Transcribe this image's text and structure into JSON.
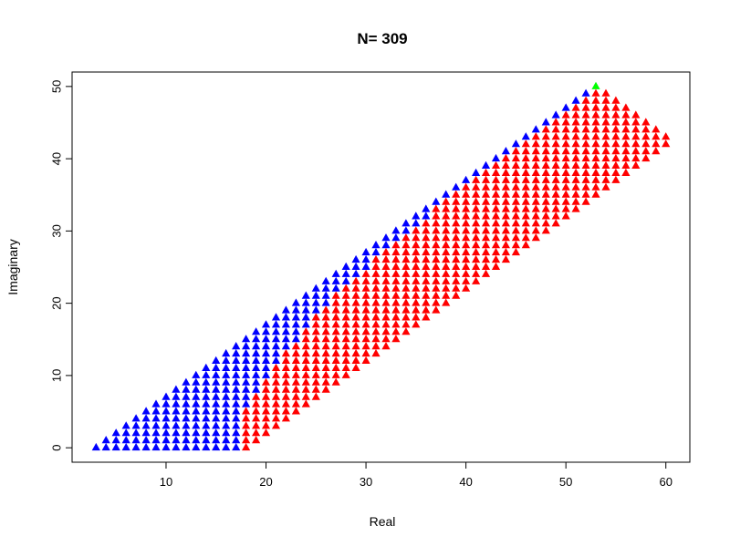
{
  "chart_data": {
    "type": "scatter",
    "title": "N= 309",
    "xlabel": "Real",
    "ylabel": "Imaginary",
    "xlim": [
      0.6,
      62.4
    ],
    "ylim": [
      -2,
      52
    ],
    "xticks": [
      10,
      20,
      30,
      40,
      50,
      60
    ],
    "yticks": [
      0,
      10,
      20,
      30,
      40,
      50
    ],
    "marker": "filled-triangle",
    "grid": false,
    "legend": "none",
    "colors": {
      "blue": "#0000ff",
      "red": "#ff0000",
      "green": "#00ff00"
    },
    "columns": [
      {
        "x": 3,
        "blue": [
          0,
          0
        ],
        "red": null
      },
      {
        "x": 4,
        "blue": [
          0,
          1
        ],
        "red": null
      },
      {
        "x": 5,
        "blue": [
          0,
          2
        ],
        "red": null
      },
      {
        "x": 6,
        "blue": [
          0,
          3
        ],
        "red": null
      },
      {
        "x": 7,
        "blue": [
          0,
          4
        ],
        "red": null
      },
      {
        "x": 8,
        "blue": [
          0,
          5
        ],
        "red": null
      },
      {
        "x": 9,
        "blue": [
          0,
          6
        ],
        "red": null
      },
      {
        "x": 10,
        "blue": [
          0,
          7
        ],
        "red": null
      },
      {
        "x": 11,
        "blue": [
          0,
          8
        ],
        "red": null
      },
      {
        "x": 12,
        "blue": [
          0,
          9
        ],
        "red": null
      },
      {
        "x": 13,
        "blue": [
          0,
          10
        ],
        "red": null
      },
      {
        "x": 14,
        "blue": [
          0,
          11
        ],
        "red": null
      },
      {
        "x": 15,
        "blue": [
          0,
          12
        ],
        "red": null
      },
      {
        "x": 16,
        "blue": [
          0,
          13
        ],
        "red": null
      },
      {
        "x": 17,
        "blue": [
          0,
          14
        ],
        "red": null
      },
      {
        "x": 18,
        "blue": [
          6,
          15
        ],
        "red": [
          0,
          5
        ]
      },
      {
        "x": 19,
        "blue": [
          8,
          16
        ],
        "red": [
          1,
          7
        ]
      },
      {
        "x": 20,
        "blue": [
          10,
          17
        ],
        "red": [
          2,
          9
        ]
      },
      {
        "x": 21,
        "blue": [
          12,
          18
        ],
        "red": [
          3,
          11
        ]
      },
      {
        "x": 22,
        "blue": [
          14,
          19
        ],
        "red": [
          4,
          13
        ]
      },
      {
        "x": 23,
        "blue": [
          15,
          20
        ],
        "red": [
          5,
          14
        ]
      },
      {
        "x": 24,
        "blue": [
          17,
          21
        ],
        "red": [
          6,
          16
        ]
      },
      {
        "x": 25,
        "blue": [
          19,
          22
        ],
        "red": [
          7,
          18
        ]
      },
      {
        "x": 26,
        "blue": [
          20,
          23
        ],
        "red": [
          8,
          19
        ]
      },
      {
        "x": 27,
        "blue": [
          22,
          24
        ],
        "red": [
          9,
          21
        ]
      },
      {
        "x": 28,
        "blue": [
          23,
          25
        ],
        "red": [
          10,
          22
        ]
      },
      {
        "x": 29,
        "blue": [
          24,
          26
        ],
        "red": [
          11,
          23
        ]
      },
      {
        "x": 30,
        "blue": [
          25,
          27
        ],
        "red": [
          12,
          24
        ]
      },
      {
        "x": 31,
        "blue": [
          27,
          28
        ],
        "red": [
          13,
          26
        ]
      },
      {
        "x": 32,
        "blue": [
          28,
          29
        ],
        "red": [
          14,
          27
        ]
      },
      {
        "x": 33,
        "blue": [
          29,
          30
        ],
        "red": [
          15,
          28
        ]
      },
      {
        "x": 34,
        "blue": [
          30,
          31
        ],
        "red": [
          16,
          29
        ]
      },
      {
        "x": 35,
        "blue": [
          31,
          32
        ],
        "red": [
          17,
          30
        ]
      },
      {
        "x": 36,
        "blue": [
          32,
          33
        ],
        "red": [
          18,
          31
        ]
      },
      {
        "x": 37,
        "blue": [
          34,
          34
        ],
        "red": [
          19,
          33
        ]
      },
      {
        "x": 38,
        "blue": [
          35,
          35
        ],
        "red": [
          20,
          34
        ]
      },
      {
        "x": 39,
        "blue": [
          36,
          36
        ],
        "red": [
          21,
          35
        ]
      },
      {
        "x": 40,
        "blue": [
          37,
          37
        ],
        "red": [
          22,
          36
        ]
      },
      {
        "x": 41,
        "blue": [
          38,
          38
        ],
        "red": [
          23,
          37
        ]
      },
      {
        "x": 42,
        "blue": [
          39,
          39
        ],
        "red": [
          24,
          38
        ]
      },
      {
        "x": 43,
        "blue": [
          40,
          40
        ],
        "red": [
          25,
          39
        ]
      },
      {
        "x": 44,
        "blue": [
          41,
          41
        ],
        "red": [
          26,
          40
        ]
      },
      {
        "x": 45,
        "blue": [
          42,
          42
        ],
        "red": [
          27,
          41
        ]
      },
      {
        "x": 46,
        "blue": [
          43,
          43
        ],
        "red": [
          28,
          42
        ]
      },
      {
        "x": 47,
        "blue": [
          44,
          44
        ],
        "red": [
          29,
          43
        ]
      },
      {
        "x": 48,
        "blue": [
          45,
          45
        ],
        "red": [
          30,
          44
        ]
      },
      {
        "x": 49,
        "blue": [
          46,
          46
        ],
        "red": [
          31,
          45
        ]
      },
      {
        "x": 50,
        "blue": [
          47,
          47
        ],
        "red": [
          32,
          46
        ]
      },
      {
        "x": 51,
        "blue": [
          48,
          48
        ],
        "red": [
          33,
          47
        ]
      },
      {
        "x": 52,
        "blue": [
          49,
          49
        ],
        "red": [
          34,
          48
        ]
      },
      {
        "x": 53,
        "blue": null,
        "red": [
          35,
          49
        ]
      },
      {
        "x": 54,
        "blue": null,
        "red": [
          36,
          49
        ]
      },
      {
        "x": 55,
        "blue": null,
        "red": [
          37,
          48
        ]
      },
      {
        "x": 56,
        "blue": null,
        "red": [
          38,
          47
        ]
      },
      {
        "x": 57,
        "blue": null,
        "red": [
          39,
          46
        ]
      },
      {
        "x": 58,
        "blue": null,
        "red": [
          40,
          45
        ]
      },
      {
        "x": 59,
        "blue": null,
        "red": [
          41,
          44
        ]
      },
      {
        "x": 60,
        "blue": null,
        "red": [
          42,
          43
        ]
      }
    ],
    "highlight_point": {
      "x": 53,
      "y": 50,
      "color": "#00ff00"
    }
  }
}
